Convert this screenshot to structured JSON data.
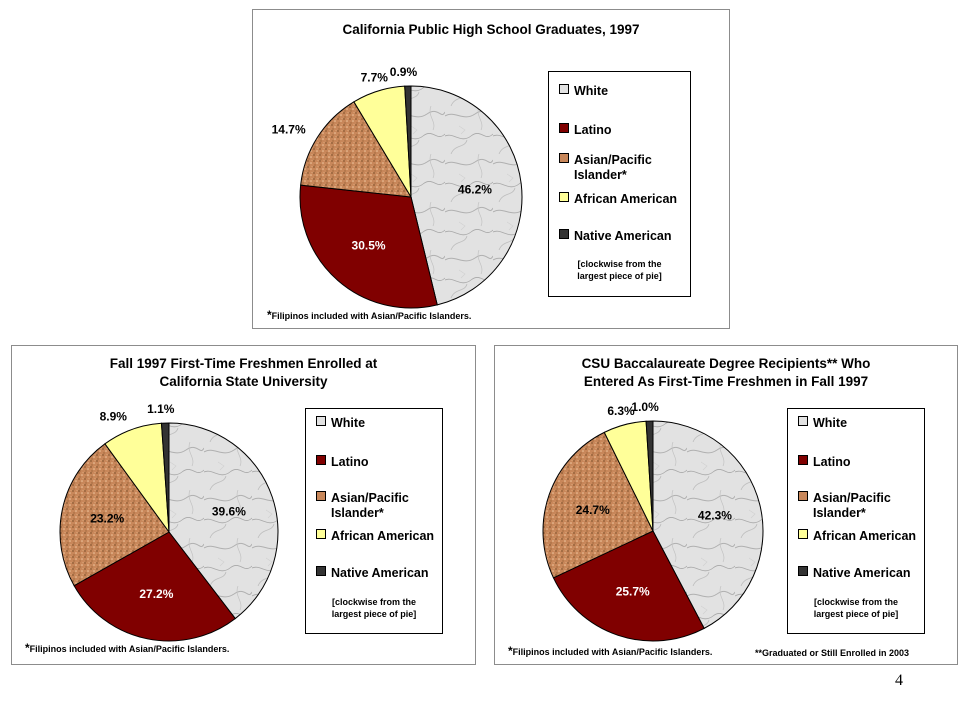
{
  "colors": {
    "white_slice": "#e2e2e2",
    "latino": "#800000",
    "asian_pacific": "#c8875a",
    "african_american": "#ffff99",
    "native_american": "#333333"
  },
  "categories": [
    "White",
    "Latino",
    "Asian/Pacific Islander*",
    "African American",
    "Native American"
  ],
  "chart_data": [
    {
      "type": "pie",
      "title": "California Public High School Graduates, 1997",
      "categories": [
        "White",
        "Latino",
        "Asian/Pacific Islander*",
        "African American",
        "Native American"
      ],
      "values": [
        46.2,
        30.5,
        14.7,
        7.7,
        0.9
      ],
      "labels": [
        "46.2%",
        "30.5%",
        "14.7%",
        "7.7%",
        "0.9%"
      ],
      "legend_note": "[clockwise from the largest piece of pie]",
      "legend_position": "right",
      "footnote": "Filipinos included with Asian/Pacific Islanders.",
      "footnote_star": "*"
    },
    {
      "type": "pie",
      "title_lines": [
        "Fall 1997 First-Time Freshmen Enrolled at",
        "California State University"
      ],
      "categories": [
        "White",
        "Latino",
        "Asian/Pacific Islander*",
        "African American",
        "Native American"
      ],
      "values": [
        39.6,
        27.2,
        23.2,
        8.9,
        1.1
      ],
      "labels": [
        "39.6%",
        "27.2%",
        "23.2%",
        "8.9%",
        "1.1%"
      ],
      "legend_note": "[clockwise from the largest piece of pie]",
      "legend_position": "right",
      "footnote": "Filipinos included with Asian/Pacific Islanders.",
      "footnote_star": "*"
    },
    {
      "type": "pie",
      "title_lines": [
        "CSU Baccalaureate Degree Recipients** Who",
        "Entered As First-Time Freshmen in Fall 1997"
      ],
      "categories": [
        "White",
        "Latino",
        "Asian/Pacific Islander*",
        "African American",
        "Native American"
      ],
      "values": [
        42.3,
        25.7,
        24.7,
        6.3,
        1.0
      ],
      "labels": [
        "42.3%",
        "25.7%",
        "24.7%",
        "6.3%",
        "1.0%"
      ],
      "legend_note": "[clockwise from the largest piece of pie]",
      "legend_position": "right",
      "footnote": "Filipinos included with Asian/Pacific Islanders.",
      "footnote_star": "*",
      "footnote2": "**Graduated or Still Enrolled in 2003"
    }
  ],
  "legend": {
    "white": "White",
    "latino": "Latino",
    "asian_line1": "Asian/Pacific",
    "asian_line2": "Islander*",
    "african_american": "African American",
    "native_american": "Native American",
    "note_line1": "[clockwise from the",
    "note_line2": "largest piece of pie]"
  },
  "page_number": "4"
}
